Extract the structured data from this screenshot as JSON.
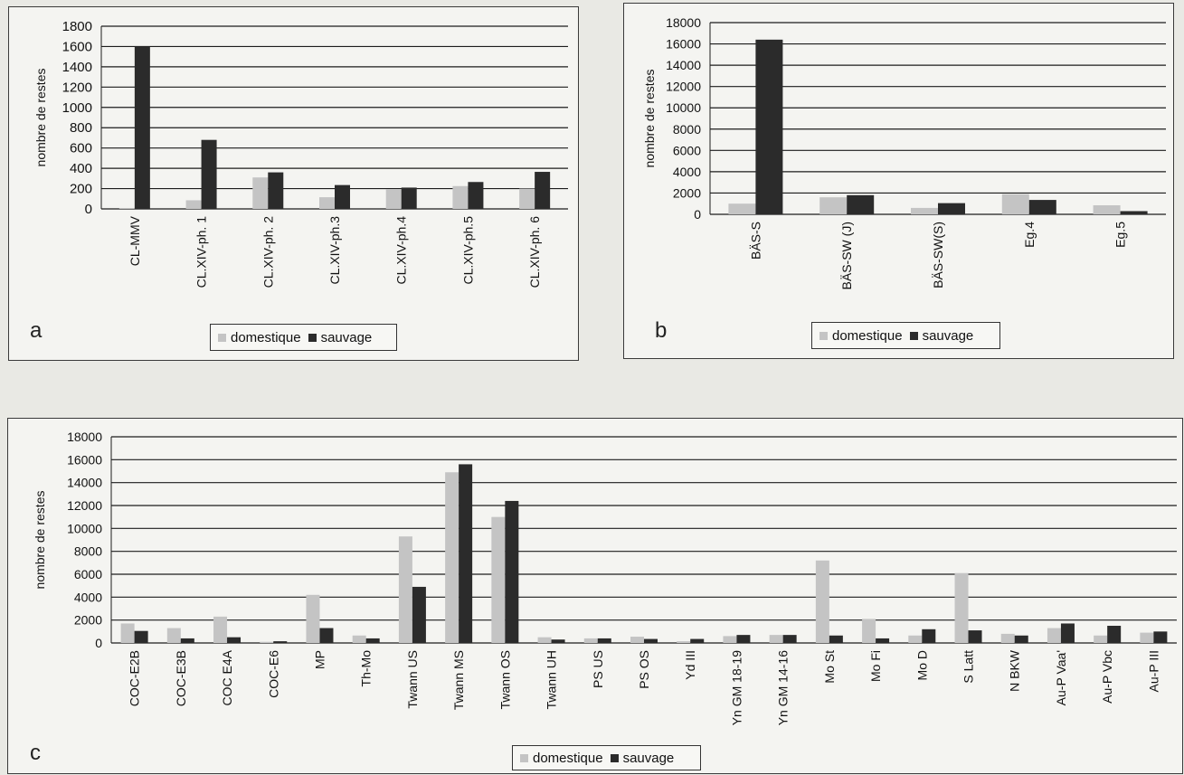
{
  "colors": {
    "domestique": "#c4c4c4",
    "sauvage": "#2b2b2b",
    "grid": "#1c1c1c",
    "text": "#111111"
  },
  "legend": {
    "domestique": "domestique",
    "sauvage": "sauvage"
  },
  "chart_data": [
    {
      "panel_letter": "a",
      "type": "bar",
      "ylabel": "nombre de restes",
      "ylim": [
        0,
        1800
      ],
      "yticks": [
        0,
        200,
        400,
        600,
        800,
        1000,
        1200,
        1400,
        1600,
        1800
      ],
      "categories": [
        "CL-MMV",
        "CL.XIV-ph. 1",
        "CL.XIV-ph. 2",
        "CL.XIV-ph.3",
        "CL.XIV-ph.4",
        "CL.XIV-ph.5",
        "CL.XIV-ph. 6"
      ],
      "series": [
        {
          "name": "domestique",
          "values": [
            5,
            85,
            310,
            115,
            195,
            225,
            200
          ]
        },
        {
          "name": "sauvage",
          "values": [
            1600,
            680,
            360,
            235,
            210,
            265,
            365
          ]
        }
      ],
      "grid": true,
      "legend_position": "bottom"
    },
    {
      "panel_letter": "b",
      "type": "bar",
      "ylabel": "nombre de restes",
      "ylim": [
        0,
        18000
      ],
      "yticks": [
        0,
        2000,
        4000,
        6000,
        8000,
        10000,
        12000,
        14000,
        16000,
        18000
      ],
      "categories": [
        "BÄS-S",
        "BÄS-SW (J)",
        "BÄS-SW(S)",
        "Eg.4",
        "Eg.5"
      ],
      "series": [
        {
          "name": "domestique",
          "values": [
            1000,
            1600,
            600,
            1900,
            850
          ]
        },
        {
          "name": "sauvage",
          "values": [
            16400,
            1800,
            1050,
            1350,
            300
          ]
        }
      ],
      "grid": true,
      "legend_position": "bottom"
    },
    {
      "panel_letter": "c",
      "type": "bar",
      "ylabel": "nombre de restes",
      "ylim": [
        0,
        18000
      ],
      "yticks": [
        0,
        2000,
        4000,
        6000,
        8000,
        10000,
        12000,
        14000,
        16000,
        18000
      ],
      "categories": [
        "COC-E2B",
        "COC-E3B",
        "COC E4A",
        "COC-E6",
        "MP",
        "Th-Mo",
        "Twann US",
        "Twann MS",
        "Twann OS",
        "Twann UH",
        "PS US",
        "PS OS",
        "Yd III",
        "Yn GM 18-19",
        "Yn GM 14-16",
        "Mo St",
        "Mo Fi",
        "Mo D",
        "S Latt",
        "N BKW",
        "Au-P Vaa'",
        "Au-P Vbc",
        "Au-P III"
      ],
      "series": [
        {
          "name": "domestique",
          "values": [
            1700,
            1300,
            2300,
            100,
            4200,
            650,
            9300,
            14900,
            11000,
            500,
            400,
            550,
            150,
            600,
            700,
            7200,
            2100,
            650,
            6100,
            800,
            1300,
            650,
            900
          ]
        },
        {
          "name": "sauvage",
          "values": [
            1050,
            400,
            500,
            150,
            1300,
            400,
            4900,
            15600,
            12400,
            300,
            400,
            350,
            350,
            700,
            700,
            650,
            400,
            1200,
            1100,
            650,
            1700,
            1500,
            1000
          ]
        }
      ],
      "grid": true,
      "legend_position": "bottom"
    }
  ]
}
